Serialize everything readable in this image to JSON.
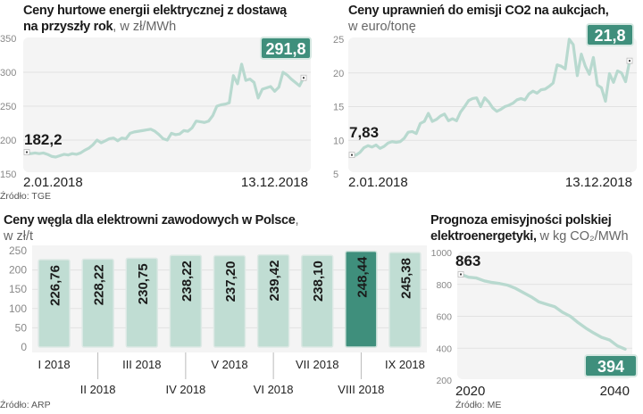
{
  "colors": {
    "line": "#b8d9cf",
    "bar_light": "#c0ddd3",
    "bar_highlight": "#3f8f7c",
    "badge": "#3f8f7c",
    "plot_bg": "#f4f4f4",
    "grid": "#e2e2e2"
  },
  "chart_data": [
    {
      "id": "energy",
      "type": "line",
      "title": "Ceny hurtowe energii elektrycznej z dostawą na przyszły rok",
      "title_line1": "Ceny hurtowe energii elektrycznej z dostawą",
      "title_line2": "na przyszły rok",
      "unit": ", w zł/MWh",
      "source": "Źródło: TGE",
      "ylim": [
        150,
        350
      ],
      "yticks": [
        "350",
        "300",
        "250",
        "200",
        "150"
      ],
      "ytick_values": [
        350,
        300,
        250,
        200,
        150
      ],
      "x_start_label": "2.01.2018",
      "x_end_label": "13.12.2018",
      "start_value_label": "182,2",
      "end_value_label": "291,8",
      "values": [
        182.2,
        180,
        181,
        180,
        181,
        179,
        176,
        175,
        177,
        179,
        178,
        180,
        179,
        181,
        185,
        188,
        193,
        200,
        196,
        199,
        202,
        203,
        199,
        203,
        202,
        210,
        212,
        213,
        214,
        215,
        216,
        213,
        208,
        202,
        200,
        210,
        208,
        209,
        214,
        213,
        218,
        228,
        227,
        226,
        228,
        236,
        250,
        252,
        253,
        255,
        295,
        283,
        312,
        288,
        290,
        285,
        262,
        275,
        277,
        279,
        272,
        278,
        300,
        296,
        290,
        285,
        280,
        291.8
      ]
    },
    {
      "id": "co2",
      "type": "line",
      "title": "Ceny uprawnień do emisji CO2 na aukcjach",
      "title_line1": "Ceny uprawnień do emisji CO2 na aukcjach,",
      "unit": "w euro/tonę",
      "ylim": [
        5,
        25
      ],
      "yticks": [
        "25",
        "20",
        "15",
        "10",
        "5"
      ],
      "ytick_values": [
        25,
        20,
        15,
        10,
        5
      ],
      "x_start_label": "2.01.2018",
      "x_end_label": "13.12.2018",
      "start_value_label": "7,83",
      "end_value_label": "21,8",
      "values": [
        7.83,
        7.8,
        8.2,
        8.9,
        9.2,
        9.0,
        9.3,
        8.8,
        9.1,
        9.6,
        9.8,
        9.7,
        9.8,
        10.3,
        11.2,
        11.3,
        11.0,
        12.5,
        12.8,
        14.0,
        12.8,
        13.1,
        13.6,
        13.9,
        12.9,
        13.2,
        12.9,
        14.2,
        15.0,
        15.9,
        16.2,
        16.3,
        15.0,
        16.3,
        15.7,
        14.8,
        14.3,
        14.6,
        15.0,
        15.2,
        15.5,
        16.0,
        16.2,
        16.0,
        16.9,
        17.3,
        17.0,
        17.5,
        17.6,
        18.0,
        18.5,
        21.2,
        21.0,
        20.6,
        25.0,
        24.2,
        19.6,
        22.8,
        21.0,
        19.8,
        22.3,
        18.2,
        17.8,
        15.8,
        19.9,
        18.6,
        20.3,
        20.0,
        18.7,
        21.8
      ]
    },
    {
      "id": "coal",
      "type": "bar",
      "title": "Ceny węgla dla elektrowni zawodowych w Polsce",
      "unit": "w zł/t",
      "source": "Źródło: ARP",
      "ylim": [
        0,
        250
      ],
      "yticks": [
        "250",
        "200",
        "150",
        "100",
        "50",
        "0"
      ],
      "ytick_values": [
        250,
        200,
        150,
        100,
        50,
        0
      ],
      "categories": [
        "I 2018",
        "II 2018",
        "III 2018",
        "IV 2018",
        "V 2018",
        "VI 2018",
        "VII 2018",
        "VIII 2018",
        "IX 2018"
      ],
      "values": [
        226.76,
        228.22,
        230.75,
        238.22,
        237.2,
        239.42,
        238.1,
        248.44,
        245.38
      ],
      "value_labels": [
        "226,76",
        "228,22",
        "230,75",
        "238,22",
        "237,20",
        "239,42",
        "238,10",
        "248,44",
        "245,38"
      ],
      "highlight_index": 7
    },
    {
      "id": "emission",
      "type": "line",
      "title": "Prognoza emisyjności polskiej elektroenergetyki",
      "title_line1": "Prognoza emisyjności polskiej",
      "title_line2": "elektroenergetyki,",
      "unit": "w kg CO₂/MWh",
      "source": "Źródło: ME",
      "ylim": [
        200,
        1000
      ],
      "yticks": [
        "1000",
        "800",
        "600",
        "400",
        "200"
      ],
      "ytick_values": [
        1000,
        800,
        600,
        400,
        200
      ],
      "x_start_label": "2020",
      "x_end_label": "2040",
      "start_value_label": "863",
      "end_value_label": "394",
      "values": [
        863,
        845,
        840,
        822,
        812,
        805,
        795,
        775,
        748,
        722,
        690,
        675,
        660,
        625,
        600,
        560,
        525,
        495,
        468,
        452,
        415,
        394
      ]
    }
  ]
}
